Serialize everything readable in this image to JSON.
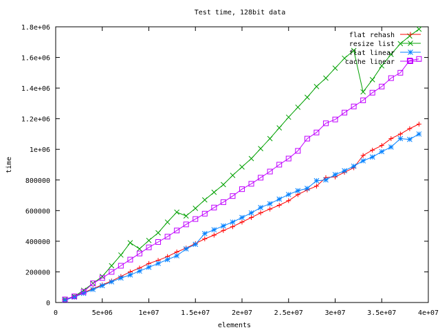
{
  "chart_data": {
    "type": "line",
    "title": "Test time, 128bit data",
    "xlabel": "elements",
    "ylabel": "time",
    "xlim": [
      0,
      40000000
    ],
    "ylim": [
      0,
      1800000
    ],
    "x_ticks": [
      0,
      5000000,
      10000000,
      15000000,
      20000000,
      25000000,
      30000000,
      35000000,
      40000000
    ],
    "x_tick_labels": [
      "0",
      "5e+06",
      "1e+07",
      "1.5e+07",
      "2e+07",
      "2.5e+07",
      "3e+07",
      "3.5e+07",
      "4e+07"
    ],
    "y_ticks": [
      0,
      200000,
      400000,
      600000,
      800000,
      1000000,
      1200000,
      1400000,
      1600000,
      1800000
    ],
    "y_tick_labels": [
      "0",
      "200000",
      "400000",
      "600000",
      "800000",
      "1e+06",
      "1.2e+06",
      "1.4e+06",
      "1.6e+06",
      "1.8e+06"
    ],
    "grid": false,
    "legend_position": "top-right",
    "x": [
      1000000,
      2000000,
      3000000,
      4000000,
      5000000,
      6000000,
      7000000,
      8000000,
      9000000,
      10000000,
      11000000,
      12000000,
      13000000,
      14000000,
      15000000,
      16000000,
      17000000,
      18000000,
      19000000,
      20000000,
      21000000,
      22000000,
      23000000,
      24000000,
      25000000,
      26000000,
      27000000,
      28000000,
      29000000,
      30000000,
      31000000,
      32000000,
      33000000,
      34000000,
      35000000,
      36000000,
      37000000,
      38000000,
      39000000
    ],
    "series": [
      {
        "name": "flat rehash",
        "color": "#ff0000",
        "marker": "plus",
        "values": [
          20000,
          40000,
          65000,
          90000,
          115000,
          140000,
          170000,
          200000,
          225000,
          255000,
          275000,
          300000,
          330000,
          355000,
          385000,
          415000,
          440000,
          470000,
          495000,
          525000,
          555000,
          585000,
          610000,
          635000,
          665000,
          705000,
          735000,
          760000,
          815000,
          820000,
          850000,
          880000,
          960000,
          995000,
          1025000,
          1070000,
          1100000,
          1135000,
          1165000
        ]
      },
      {
        "name": "resize list",
        "color": "#00a000",
        "marker": "x",
        "values": [
          20000,
          40000,
          80000,
          125000,
          170000,
          240000,
          310000,
          390000,
          350000,
          405000,
          455000,
          525000,
          590000,
          565000,
          615000,
          670000,
          720000,
          770000,
          830000,
          885000,
          940000,
          1005000,
          1070000,
          1140000,
          1210000,
          1275000,
          1340000,
          1410000,
          1465000,
          1530000,
          1595000,
          1645000,
          1375000,
          1455000,
          1545000,
          1620000,
          1690000,
          1740000,
          1785000
        ]
      },
      {
        "name": "flat linear",
        "color": "#0080ff",
        "marker": "star",
        "values": [
          15000,
          35000,
          60000,
          85000,
          110000,
          135000,
          160000,
          180000,
          205000,
          230000,
          255000,
          280000,
          305000,
          350000,
          380000,
          450000,
          475000,
          500000,
          525000,
          555000,
          585000,
          620000,
          645000,
          675000,
          705000,
          730000,
          745000,
          795000,
          800000,
          835000,
          860000,
          890000,
          925000,
          950000,
          985000,
          1015000,
          1070000,
          1065000,
          1100000
        ]
      },
      {
        "name": "cache linear",
        "color": "#c000ff",
        "marker": "box",
        "values": [
          20000,
          40000,
          70000,
          125000,
          160000,
          200000,
          240000,
          280000,
          320000,
          360000,
          395000,
          430000,
          470000,
          510000,
          545000,
          580000,
          620000,
          655000,
          695000,
          740000,
          775000,
          815000,
          855000,
          900000,
          940000,
          990000,
          1070000,
          1110000,
          1170000,
          1195000,
          1240000,
          1280000,
          1320000,
          1370000,
          1410000,
          1465000,
          1500000,
          1580000,
          1590000
        ]
      }
    ]
  }
}
